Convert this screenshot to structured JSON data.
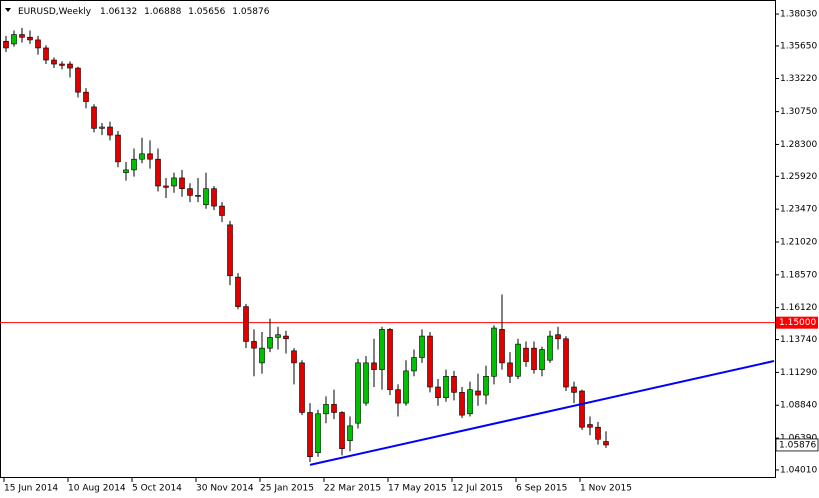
{
  "chart_data": {
    "type": "candlestick",
    "title": "EURUSD,Weekly",
    "categories": [
      "15 Jun 2014",
      null,
      null,
      null,
      null,
      null,
      null,
      null,
      "10 Aug 2014",
      null,
      null,
      null,
      null,
      null,
      null,
      null,
      "5 Oct 2014",
      null,
      null,
      null,
      null,
      null,
      null,
      null,
      "30 Nov 2014",
      null,
      null,
      null,
      null,
      null,
      null,
      null,
      "25 Jan 2015",
      null,
      null,
      null,
      null,
      null,
      null,
      null,
      "22 Mar 2015",
      null,
      null,
      null,
      null,
      null,
      null,
      null,
      "17 May 2015",
      null,
      null,
      null,
      null,
      null,
      null,
      null,
      "12 Jul 2015",
      null,
      null,
      null,
      null,
      null,
      null,
      null,
      "6 Sep 2015",
      null,
      null,
      null,
      null,
      null,
      null,
      null,
      "1 Nov 2015",
      null,
      null,
      null
    ],
    "open": [
      1.36,
      1.358,
      1.365,
      1.363,
      1.361,
      1.355,
      1.346,
      1.343,
      1.343,
      1.34,
      1.322,
      1.311,
      1.295,
      1.296,
      1.29,
      1.262,
      1.264,
      1.272,
      1.276,
      1.272,
      1.252,
      1.252,
      1.258,
      1.25,
      1.245,
      1.238,
      1.25,
      1.237,
      1.223,
      1.184,
      1.162,
      1.136,
      1.12,
      1.131,
      1.139,
      1.14,
      1.129,
      1.12,
      1.083,
      1.053,
      1.082,
      1.089,
      1.083,
      1.062,
      1.075,
      1.09,
      1.12,
      1.115,
      1.145,
      1.1,
      1.09,
      1.114,
      1.124,
      1.14,
      1.102,
      1.094,
      1.11,
      1.098,
      1.082,
      1.099,
      1.096,
      1.11,
      1.145,
      1.12,
      1.11,
      1.131,
      1.131,
      1.115,
      1.122,
      1.141,
      1.138,
      1.102,
      1.099,
      1.074,
      1.072,
      1.06132
    ],
    "high": [
      1.364,
      1.368,
      1.37,
      1.368,
      1.364,
      1.357,
      1.348,
      1.345,
      1.345,
      1.341,
      1.325,
      1.313,
      1.299,
      1.3,
      1.293,
      1.27,
      1.28,
      1.288,
      1.286,
      1.28,
      1.258,
      1.262,
      1.264,
      1.254,
      1.258,
      1.262,
      1.252,
      1.24,
      1.226,
      1.187,
      1.164,
      1.145,
      1.143,
      1.153,
      1.147,
      1.144,
      1.131,
      1.122,
      1.09,
      1.085,
      1.095,
      1.1,
      1.084,
      1.08,
      1.123,
      1.125,
      1.138,
      1.147,
      1.146,
      1.104,
      1.122,
      1.13,
      1.145,
      1.143,
      1.108,
      1.115,
      1.114,
      1.102,
      1.106,
      1.112,
      1.118,
      1.148,
      1.171,
      1.128,
      1.138,
      1.136,
      1.136,
      1.132,
      1.144,
      1.147,
      1.14,
      1.106,
      1.1,
      1.08,
      1.076,
      1.06888
    ],
    "low": [
      1.352,
      1.356,
      1.359,
      1.358,
      1.35,
      1.343,
      1.34,
      1.339,
      1.333,
      1.318,
      1.31,
      1.292,
      1.29,
      1.286,
      1.266,
      1.256,
      1.259,
      1.269,
      1.265,
      1.248,
      1.243,
      1.247,
      1.244,
      1.24,
      1.24,
      1.235,
      1.234,
      1.225,
      1.178,
      1.16,
      1.131,
      1.11,
      1.112,
      1.128,
      1.13,
      1.127,
      1.104,
      1.081,
      1.046,
      1.05,
      1.075,
      1.078,
      1.051,
      1.054,
      1.071,
      1.088,
      1.102,
      1.1,
      1.096,
      1.08,
      1.088,
      1.11,
      1.12,
      1.098,
      1.088,
      1.091,
      1.092,
      1.079,
      1.08,
      1.088,
      1.089,
      1.104,
      1.115,
      1.105,
      1.108,
      1.117,
      1.112,
      1.11,
      1.12,
      1.13,
      1.099,
      1.09,
      1.07,
      1.066,
      1.059,
      1.05656
    ],
    "close": [
      1.355,
      1.365,
      1.363,
      1.361,
      1.355,
      1.346,
      1.343,
      1.342,
      1.34,
      1.322,
      1.315,
      1.295,
      1.296,
      1.29,
      1.27,
      1.264,
      1.272,
      1.276,
      1.272,
      1.252,
      1.251,
      1.258,
      1.25,
      1.245,
      1.245,
      1.25,
      1.237,
      1.23,
      1.185,
      1.162,
      1.136,
      1.131,
      1.131,
      1.139,
      1.141,
      1.138,
      1.12,
      1.083,
      1.05,
      1.082,
      1.089,
      1.083,
      1.056,
      1.073,
      1.12,
      1.12,
      1.115,
      1.145,
      1.1,
      1.09,
      1.114,
      1.124,
      1.14,
      1.102,
      1.094,
      1.11,
      1.098,
      1.081,
      1.1,
      1.096,
      1.11,
      1.146,
      1.12,
      1.11,
      1.134,
      1.121,
      1.115,
      1.13,
      1.14,
      1.138,
      1.102,
      1.098,
      1.072,
      1.072,
      1.063,
      1.05876
    ],
    "up_color": "#00c000",
    "down_color": "#e00000",
    "ylim": [
      1.0341,
      1.3878
    ],
    "yticks": [
      {
        "value": 1.3803,
        "label": "1.38030"
      },
      {
        "value": 1.3565,
        "label": "1.35650"
      },
      {
        "value": 1.3322,
        "label": "1.33220"
      },
      {
        "value": 1.3075,
        "label": "1.30750"
      },
      {
        "value": 1.283,
        "label": "1.28300"
      },
      {
        "value": 1.2592,
        "label": "1.25920"
      },
      {
        "value": 1.2347,
        "label": "1.23470"
      },
      {
        "value": 1.2102,
        "label": "1.21020"
      },
      {
        "value": 1.1857,
        "label": "1.18570"
      },
      {
        "value": 1.1612,
        "label": "1.16120"
      },
      {
        "value": 1.1374,
        "label": "1.13740"
      },
      {
        "value": 1.1129,
        "label": "1.11290"
      },
      {
        "value": 1.0884,
        "label": "1.08840"
      },
      {
        "value": 1.0639,
        "label": "1.06390"
      },
      {
        "value": 1.0401,
        "label": "1.04010"
      }
    ],
    "hline": {
      "value": 1.15,
      "label": "1.15000",
      "color": "#ff0000"
    },
    "trendline": {
      "x": [
        38,
        96
      ],
      "y": [
        1.0439,
        1.1214
      ],
      "color": "#0000ff"
    }
  }
}
